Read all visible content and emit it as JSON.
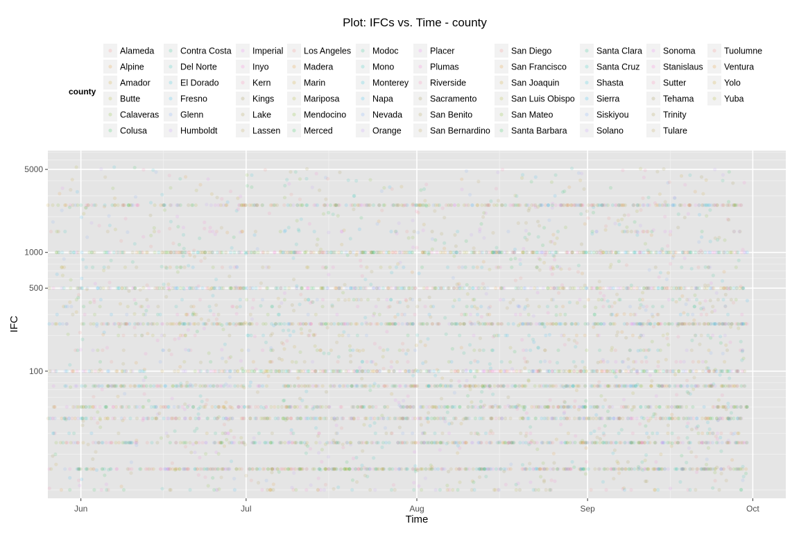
{
  "chart_data": {
    "type": "scatter",
    "title": "Plot: IFCs vs. Time - county",
    "xlabel": "Time",
    "ylabel": "IFC",
    "x_scale": "date",
    "y_scale": "log",
    "xlim": [
      "2015-05-26",
      "2015-10-07"
    ],
    "ylim": [
      8.5,
      7200
    ],
    "x_ticks": [
      {
        "date": "2015-06-01",
        "label": "Jun"
      },
      {
        "date": "2015-07-01",
        "label": "Jul"
      },
      {
        "date": "2015-08-01",
        "label": "Aug"
      },
      {
        "date": "2015-09-01",
        "label": "Sep"
      },
      {
        "date": "2015-10-01",
        "label": "Oct"
      }
    ],
    "y_ticks": [
      {
        "value": 100,
        "label": "100"
      },
      {
        "value": 500,
        "label": "500"
      },
      {
        "value": 1000,
        "label": "1000"
      },
      {
        "value": 5000,
        "label": "5000"
      }
    ],
    "x_minor_ticks": [
      "2015-06-16",
      "2015-07-16",
      "2015-08-16",
      "2015-09-16"
    ],
    "y_minor_ticks": [
      10,
      20,
      30,
      40,
      50,
      60,
      70,
      80,
      90,
      200,
      300,
      400,
      600,
      700,
      800,
      900,
      2000,
      3000,
      4000,
      6000,
      7000
    ],
    "x_range": [
      "2015-05-26",
      "2015-09-30"
    ],
    "frequent_values": [
      10,
      15,
      25,
      30,
      40,
      50,
      75,
      100,
      120,
      150,
      200,
      250,
      300,
      350,
      400,
      500,
      750,
      1000,
      1500,
      2500
    ],
    "point_alpha": 0.12,
    "grid": true,
    "legend": {
      "title": "county",
      "position": "top",
      "columns": [
        [
          "Alameda",
          "Alpine",
          "Amador",
          "Butte",
          "Calaveras",
          "Colusa"
        ],
        [
          "Contra Costa",
          "Del Norte",
          "El Dorado",
          "Fresno",
          "Glenn",
          "Humboldt"
        ],
        [
          "Imperial",
          "Inyo",
          "Kern",
          "Kings",
          "Lake",
          "Lassen"
        ],
        [
          "Los Angeles",
          "Madera",
          "Marin",
          "Mariposa",
          "Mendocino",
          "Merced"
        ],
        [
          "Modoc",
          "Mono",
          "Monterey",
          "Napa",
          "Nevada",
          "Orange"
        ],
        [
          "Placer",
          "Plumas",
          "Riverside",
          "Sacramento",
          "San Benito",
          "San Bernardino"
        ],
        [
          "San Diego",
          "San Francisco",
          "San Joaquin",
          "San Luis Obispo",
          "San Mateo",
          "Santa Barbara"
        ],
        [
          "Santa Clara",
          "Santa Cruz",
          "Shasta",
          "Sierra",
          "Siskiyou",
          "Solano"
        ],
        [
          "Sonoma",
          "Stanislaus",
          "Sutter",
          "Tehama",
          "Trinity",
          "Tulare"
        ],
        [
          "Tuolumne",
          "Ventura",
          "Yolo",
          "Yuba"
        ]
      ]
    },
    "colors": {
      "panel_bg": "#e5e5e5",
      "grid_major": "#ffffff",
      "grid_minor": "#f2f2f2",
      "legend_key_bg": "#f2f2f2",
      "series_palette": [
        "#f8766d",
        "#e58700",
        "#c99800",
        "#a3a500",
        "#6bb100",
        "#00ba38",
        "#00bf7d",
        "#00c0af",
        "#00bcd8",
        "#00b0f6",
        "#619cff",
        "#b983ff",
        "#e76bf3",
        "#fd61d1",
        "#ff67a4",
        "#8b7a1a",
        "#9a8a20",
        "#b08f2a"
      ]
    }
  }
}
